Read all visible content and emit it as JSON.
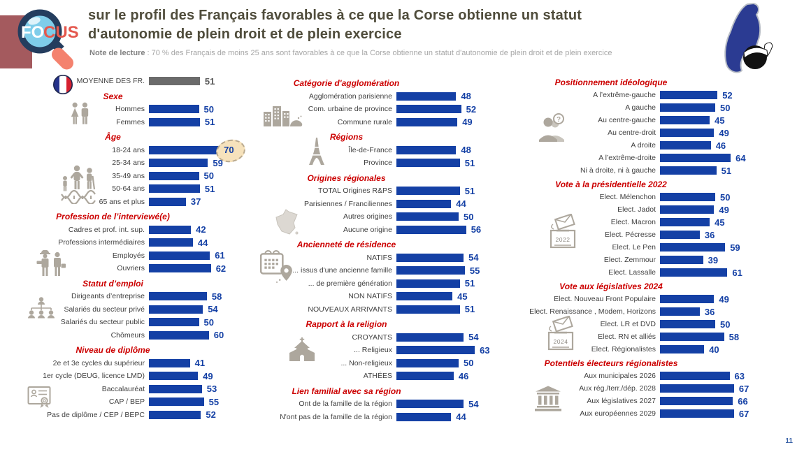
{
  "page": {
    "number": "11"
  },
  "header": {
    "logo": {
      "fo": "FO",
      "cus": "CUS"
    },
    "title_line1": "sur le profil des Français favorables à ce que la Corse obtienne un statut",
    "title_line2": "d'autonomie de plein droit et de plein exercice",
    "note_label": "Note de lecture",
    "note_text": " : 70 % des Français de moins 25 ans sont favorables à ce que la Corse obtienne un statut d'autonomie de plein droit et de plein exercice"
  },
  "colors": {
    "bar_blue": "#1440A5",
    "bar_gray": "#6B6B6B",
    "value_gray": "#595959",
    "category_red": "#CC0000",
    "title_olive": "#4F4C3B",
    "accent_maroon": "#A45A5E",
    "icon_gray": "#ADA79D",
    "highlight_fill": "#F6E2BC",
    "corsica_blue": "#2B3B92"
  },
  "icons": [
    "focus-logo",
    "corsica-flag-icon",
    "flag-france-icon",
    "man-woman-icon",
    "family-generations-dna-icon",
    "workers-icon",
    "org-chart-icon",
    "diploma-icon",
    "city-icon",
    "eiffel-tower-icon",
    "france-map-icon",
    "calendar-pin-icon",
    "church-icon",
    "person-question-icon",
    "ballot-box-2022-icon",
    "ballot-box-2024-icon",
    "institution-icon"
  ],
  "glyphs": {
    "ballot_2022": "2022",
    "ballot_2024": "2024",
    "question_mark": "?"
  },
  "chart_data": {
    "type": "bar",
    "orientation": "horizontal",
    "unit": "% favorables",
    "value_axis_range": [
      0,
      70
    ],
    "grid": false,
    "title": "sur le profil des Français favorables à ce que la Corse obtienne un statut d'autonomie de plein droit et de plein exercice",
    "columns": [
      {
        "rows": [
          {
            "label": "MOYENNE DES FR.",
            "value": 51,
            "gray": true
          },
          {
            "h": "Sexe"
          },
          {
            "label": "Hommes",
            "value": 50
          },
          {
            "label": "Femmes",
            "value": 51
          },
          {
            "h": "Âge"
          },
          {
            "label": "18-24 ans",
            "value": 70,
            "highlight": true
          },
          {
            "label": "25-34 ans",
            "value": 59
          },
          {
            "label": "35-49 ans",
            "value": 50
          },
          {
            "label": "50-64 ans",
            "value": 51
          },
          {
            "label": "65 ans et plus",
            "value": 37
          },
          {
            "h": "Profession de l’interviewé(e)"
          },
          {
            "label": "Cadres et prof. int. sup.",
            "value": 42
          },
          {
            "label": "Professions intermédiaires",
            "value": 44
          },
          {
            "label": "Employés",
            "value": 61
          },
          {
            "label": "Ouvriers",
            "value": 62
          },
          {
            "h": "Statut d’emploi"
          },
          {
            "label": "Dirigeants d’entreprise",
            "value": 58
          },
          {
            "label": "Salariés du secteur privé",
            "value": 54
          },
          {
            "label": "Salariés du secteur public",
            "value": 50
          },
          {
            "label": "Chômeurs",
            "value": 60
          },
          {
            "h": "Niveau de diplôme"
          },
          {
            "label": "2e et 3e cycles du supérieur",
            "value": 41
          },
          {
            "label": "1er cycle (DEUG, licence LMD)",
            "value": 49
          },
          {
            "label": "Baccalauréat",
            "value": 53
          },
          {
            "label": "CAP / BEP",
            "value": 55
          },
          {
            "label": "Pas de diplôme / CEP / BEPC",
            "value": 52
          }
        ]
      },
      {
        "rows": [
          {
            "h": "Catégorie d'agglomération"
          },
          {
            "label": "Agglomération parisienne",
            "value": 48
          },
          {
            "label": "Com. urbaine de province",
            "value": 52
          },
          {
            "label": "Commune rurale",
            "value": 49
          },
          {
            "h": "Régions"
          },
          {
            "label": "Île-de-France",
            "value": 48
          },
          {
            "label": "Province",
            "value": 51
          },
          {
            "h": "Origines régionales"
          },
          {
            "label": "TOTAL Origines R&PS",
            "value": 51
          },
          {
            "label": "Parisiennes / Franciliennes",
            "value": 44
          },
          {
            "label": "Autres origines",
            "value": 50
          },
          {
            "label": "Aucune origine",
            "value": 56
          },
          {
            "h": "Ancienneté de résidence"
          },
          {
            "label": "NATIFS",
            "value": 54
          },
          {
            "label": "... issus d'une ancienne famille",
            "value": 55
          },
          {
            "label": "... de première génération",
            "value": 51
          },
          {
            "label": "NON NATIFS",
            "value": 45
          },
          {
            "label": "NOUVEAUX ARRIVANTS",
            "value": 51
          },
          {
            "h": "Rapport à la religion"
          },
          {
            "label": "CROYANTS",
            "value": 54
          },
          {
            "label": "... Religieux",
            "value": 63
          },
          {
            "label": "... Non-religieux",
            "value": 50
          },
          {
            "label": "ATHÉES",
            "value": 46
          },
          {
            "h": "Lien familial avec sa région"
          },
          {
            "label": "Ont de la famille  de la région",
            "value": 54
          },
          {
            "label": "N'ont pas de la famille  de la région",
            "value": 44
          }
        ]
      },
      {
        "rows": [
          {
            "h": "Positionnement idéologique"
          },
          {
            "label": "A l’extrême-gauche",
            "value": 52
          },
          {
            "label": "A gauche",
            "value": 50
          },
          {
            "label": "Au centre-gauche",
            "value": 45
          },
          {
            "label": "Au centre-droit",
            "value": 49
          },
          {
            "label": "A droite",
            "value": 46
          },
          {
            "label": "A l’extrême-droite",
            "value": 64
          },
          {
            "label": "Ni à droite, ni à gauche",
            "value": 51
          },
          {
            "h": "Vote à la présidentielle 2022"
          },
          {
            "label": "Elect. Mélenchon",
            "value": 50
          },
          {
            "label": "Elect. Jadot",
            "value": 49
          },
          {
            "label": "Elect. Macron",
            "value": 45
          },
          {
            "label": "Elect. Pécresse",
            "value": 36
          },
          {
            "label": "Elect. Le Pen",
            "value": 59
          },
          {
            "label": "Elect. Zemmour",
            "value": 39
          },
          {
            "label": "Elect. Lassalle",
            "value": 61
          },
          {
            "h": "Vote aux législatives 2024"
          },
          {
            "label": "Elect. Nouveau Front Populaire",
            "value": 49
          },
          {
            "label": "Elect. Renaissance , Modem, Horizons",
            "value": 36
          },
          {
            "label": "Elect. LR et DVD",
            "value": 50
          },
          {
            "label": "Elect. RN et alliés",
            "value": 58
          },
          {
            "label": "Elect. Régionalistes",
            "value": 40
          },
          {
            "h": "Potentiels électeurs régionalistes"
          },
          {
            "label": "Aux municipales 2026",
            "value": 63
          },
          {
            "label": "Aux rég./terr./dép. 2028",
            "value": 67
          },
          {
            "label": "Aux législatives 2027",
            "value": 66
          },
          {
            "label": "Aux européennes 2029",
            "value": 67
          }
        ]
      }
    ]
  }
}
